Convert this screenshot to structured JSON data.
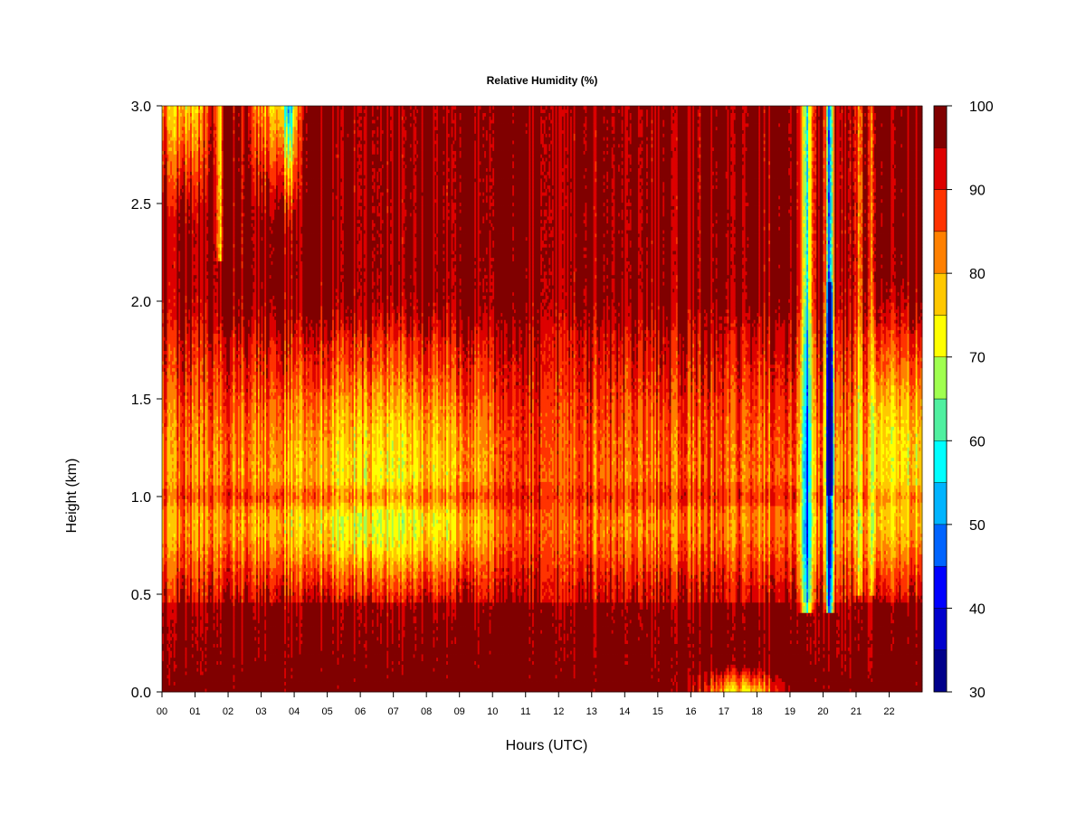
{
  "chart_data": {
    "type": "heatmap",
    "title": "Relative Humidity (%)",
    "xlabel": "Hours (UTC)",
    "ylabel": "Height (km)",
    "x_range": [
      0,
      23
    ],
    "y_range": [
      0,
      3
    ],
    "x_ticks": [
      "00",
      "01",
      "02",
      "03",
      "04",
      "05",
      "06",
      "07",
      "08",
      "09",
      "10",
      "11",
      "12",
      "13",
      "14",
      "15",
      "16",
      "17",
      "18",
      "19",
      "20",
      "21",
      "22"
    ],
    "y_ticks": [
      "0.0",
      "0.5",
      "1.0",
      "1.5",
      "2.0",
      "2.5",
      "3.0"
    ],
    "colorbar": {
      "range": [
        30,
        100
      ],
      "levels": [
        30,
        35,
        40,
        45,
        50,
        55,
        60,
        65,
        70,
        75,
        80,
        85,
        90,
        95,
        100
      ],
      "colors": [
        "#00008b",
        "#0000cd",
        "#0000ff",
        "#0064ff",
        "#00b4ff",
        "#00ffff",
        "#50f0a0",
        "#a0ff50",
        "#ffff00",
        "#ffc800",
        "#ff8000",
        "#ff3300",
        "#dd0000",
        "#800000"
      ],
      "tick_labels": [
        "30",
        "40",
        "50",
        "60",
        "70",
        "80",
        "90",
        "100"
      ],
      "tick_values": [
        30,
        40,
        50,
        60,
        70,
        80,
        90,
        100
      ]
    },
    "grid": false
  }
}
